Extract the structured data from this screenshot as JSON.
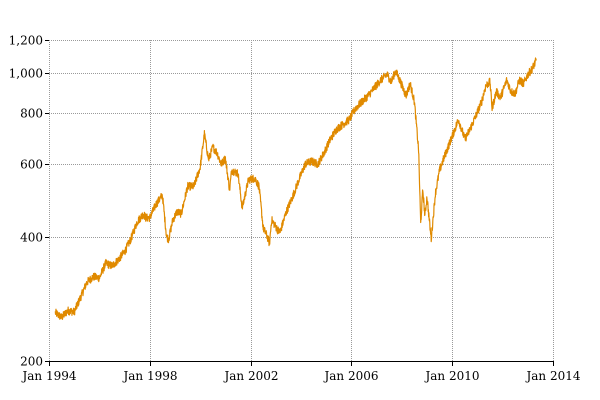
{
  "chart_data": {
    "type": "line",
    "title": "",
    "xlabel": "",
    "ylabel": "",
    "x_scale": "time",
    "y_scale": "log",
    "xlim": [
      "1994-01-01",
      "2014-01-01"
    ],
    "ylim": [
      200,
      1200
    ],
    "grid": true,
    "legend": "none",
    "x_ticks": [
      {
        "value": 1994.0,
        "label": "Jan 1994"
      },
      {
        "value": 1998.0,
        "label": "Jan 1998"
      },
      {
        "value": 2002.0,
        "label": "Jan 2002"
      },
      {
        "value": 2006.0,
        "label": "Jan 2006"
      },
      {
        "value": 2010.0,
        "label": "Jan 2010"
      },
      {
        "value": 2014.0,
        "label": "Jan 2014"
      }
    ],
    "y_ticks": [
      {
        "value": 200,
        "label": "200"
      },
      {
        "value": 400,
        "label": "400"
      },
      {
        "value": 600,
        "label": "600"
      },
      {
        "value": 800,
        "label": "800"
      },
      {
        "value": 1000,
        "label": "1,000"
      },
      {
        "value": 1200,
        "label": "1,200"
      }
    ],
    "series": [
      {
        "color": "#e08a00",
        "points": [
          [
            "1994-04",
            262
          ],
          [
            "1994-07",
            255
          ],
          [
            "1994-10",
            265
          ],
          [
            "1995-01",
            263
          ],
          [
            "1995-04",
            285
          ],
          [
            "1995-07",
            310
          ],
          [
            "1995-10",
            320
          ],
          [
            "1996-01",
            318
          ],
          [
            "1996-04",
            345
          ],
          [
            "1996-07",
            340
          ],
          [
            "1996-10",
            352
          ],
          [
            "1997-01",
            368
          ],
          [
            "1997-04",
            395
          ],
          [
            "1997-07",
            435
          ],
          [
            "1997-10",
            455
          ],
          [
            "1997-11",
            445
          ],
          [
            "1998-01",
            445
          ],
          [
            "1998-04",
            480
          ],
          [
            "1998-07",
            505
          ],
          [
            "1998-09",
            400
          ],
          [
            "1998-10",
            395
          ],
          [
            "1998-12",
            440
          ],
          [
            "1999-02",
            460
          ],
          [
            "1999-04",
            455
          ],
          [
            "1999-07",
            530
          ],
          [
            "1999-10",
            530
          ],
          [
            "2000-01",
            590
          ],
          [
            "2000-03",
            710
          ],
          [
            "2000-05",
            615
          ],
          [
            "2000-07",
            660
          ],
          [
            "2000-09",
            640
          ],
          [
            "2000-11",
            600
          ],
          [
            "2001-01",
            620
          ],
          [
            "2001-03",
            520
          ],
          [
            "2001-04",
            580
          ],
          [
            "2001-07",
            570
          ],
          [
            "2001-09",
            470
          ],
          [
            "2001-12",
            550
          ],
          [
            "2002-03",
            555
          ],
          [
            "2002-05",
            530
          ],
          [
            "2002-07",
            420
          ],
          [
            "2002-09",
            400
          ],
          [
            "2002-10",
            385
          ],
          [
            "2002-11",
            440
          ],
          [
            "2003-02",
            415
          ],
          [
            "2003-03",
            410
          ],
          [
            "2003-06",
            460
          ],
          [
            "2003-09",
            500
          ],
          [
            "2003-12",
            550
          ],
          [
            "2004-03",
            600
          ],
          [
            "2004-06",
            610
          ],
          [
            "2004-09",
            600
          ],
          [
            "2004-12",
            640
          ],
          [
            "2005-03",
            690
          ],
          [
            "2005-06",
            730
          ],
          [
            "2005-09",
            750
          ],
          [
            "2005-12",
            770
          ],
          [
            "2006-03",
            820
          ],
          [
            "2006-06",
            850
          ],
          [
            "2006-09",
            880
          ],
          [
            "2006-12",
            920
          ],
          [
            "2007-03",
            960
          ],
          [
            "2007-06",
            990
          ],
          [
            "2007-08",
            950
          ],
          [
            "2007-10",
            1010
          ],
          [
            "2007-12",
            960
          ],
          [
            "2008-03",
            880
          ],
          [
            "2008-05",
            940
          ],
          [
            "2008-07",
            850
          ],
          [
            "2008-09",
            650
          ],
          [
            "2008-10",
            430
          ],
          [
            "2008-11",
            520
          ],
          [
            "2008-12",
            450
          ],
          [
            "2009-01",
            500
          ],
          [
            "2009-03",
            395
          ],
          [
            "2009-05",
            510
          ],
          [
            "2009-07",
            580
          ],
          [
            "2009-09",
            620
          ],
          [
            "2009-12",
            680
          ],
          [
            "2010-04",
            770
          ],
          [
            "2010-07",
            690
          ],
          [
            "2010-09",
            720
          ],
          [
            "2010-12",
            780
          ],
          [
            "2011-03",
            850
          ],
          [
            "2011-05",
            930
          ],
          [
            "2011-07",
            950
          ],
          [
            "2011-08",
            820
          ],
          [
            "2011-10",
            900
          ],
          [
            "2011-12",
            870
          ],
          [
            "2012-03",
            960
          ],
          [
            "2012-05",
            900
          ],
          [
            "2012-07",
            890
          ],
          [
            "2012-09",
            960
          ],
          [
            "2012-11",
            940
          ],
          [
            "2013-01",
            990
          ],
          [
            "2013-03",
            1020
          ],
          [
            "2013-05",
            1070
          ]
        ]
      }
    ]
  }
}
